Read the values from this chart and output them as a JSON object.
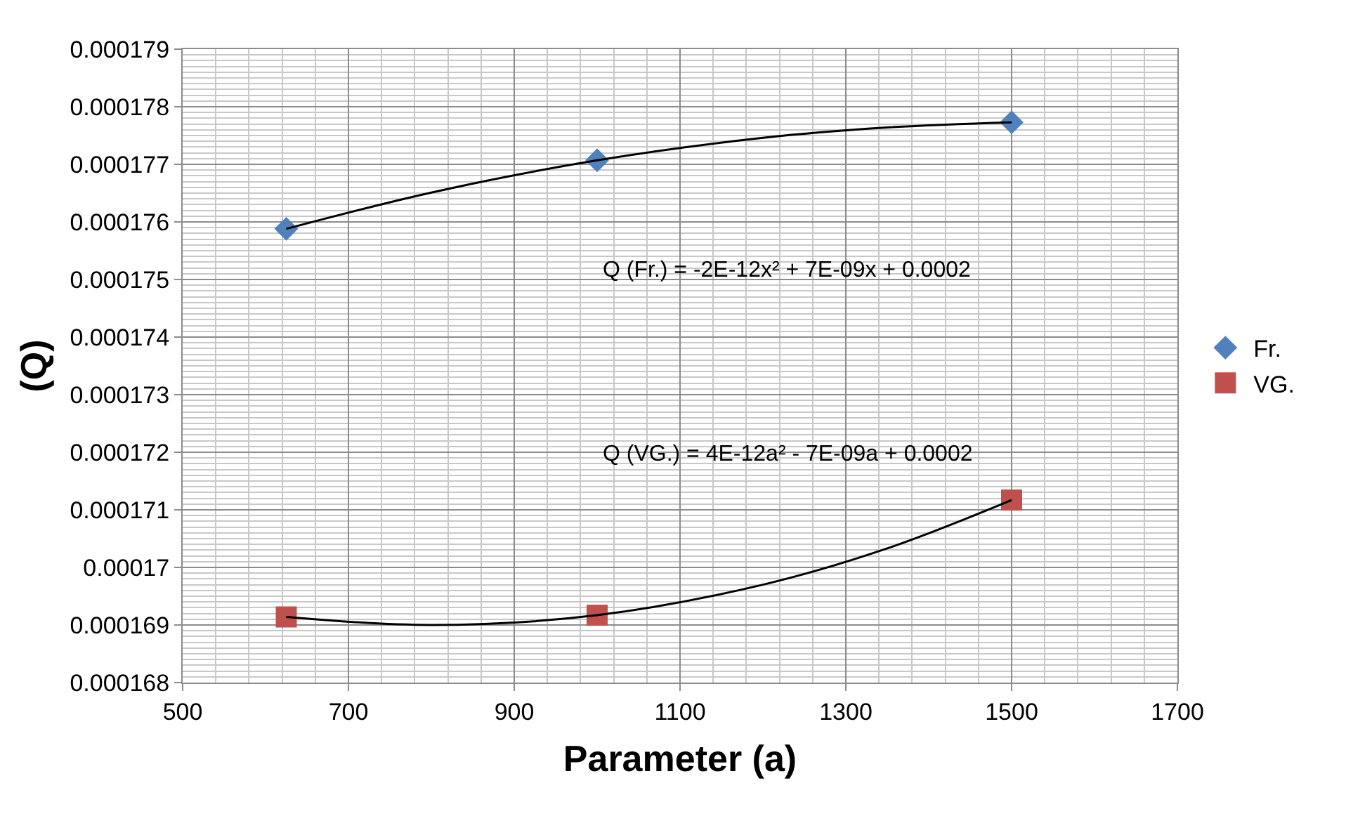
{
  "chart_data": {
    "type": "scatter",
    "xlabel": "Parameter (a)",
    "ylabel": "(Q)",
    "series": [
      {
        "name": "Fr.",
        "color": "#4f81bd",
        "marker": "diamond",
        "x": [
          625,
          1000,
          1500
        ],
        "values": [
          0.00017588,
          0.00017707,
          0.00017773
        ]
      },
      {
        "name": "VG.",
        "color": "#c0504d",
        "marker": "square",
        "x": [
          625,
          1000,
          1500
        ],
        "values": [
          0.00016914,
          0.00016917,
          0.00017117
        ]
      },
      {
        "type": "line",
        "color": "#000000",
        "marker": "none",
        "x": [
          625,
          800,
          1000,
          1200,
          1350,
          1500
        ],
        "values": [
          0.00017588,
          0.00017651,
          0.00017707,
          0.00017746,
          0.00017764,
          0.00017773
        ]
      },
      {
        "type": "line",
        "color": "#000000",
        "marker": "none",
        "x": [
          625,
          800,
          1000,
          1200,
          1350,
          1500
        ],
        "values": [
          0.00016914,
          0.000169,
          0.00016917,
          0.0001697,
          0.00017033,
          0.00017117
        ]
      }
    ],
    "annotations": [
      "Q (Fr.) = -2E-12x² + 7E-09x + 0.0002",
      "Q (VG.) = 4E-12a² - 7E-09a + 0.0002"
    ],
    "xlim": [
      500,
      1700
    ],
    "xticks": [
      500,
      700,
      900,
      1100,
      1300,
      1500,
      1700
    ],
    "ylim": [
      0.000168,
      0.000179
    ],
    "yticks": [
      0.000168,
      0.000169,
      0.00017,
      0.000171,
      0.000172,
      0.000173,
      0.000174,
      0.000175,
      0.000176,
      0.000177,
      0.000178,
      0.000179
    ],
    "grid": true,
    "legend": "right"
  }
}
